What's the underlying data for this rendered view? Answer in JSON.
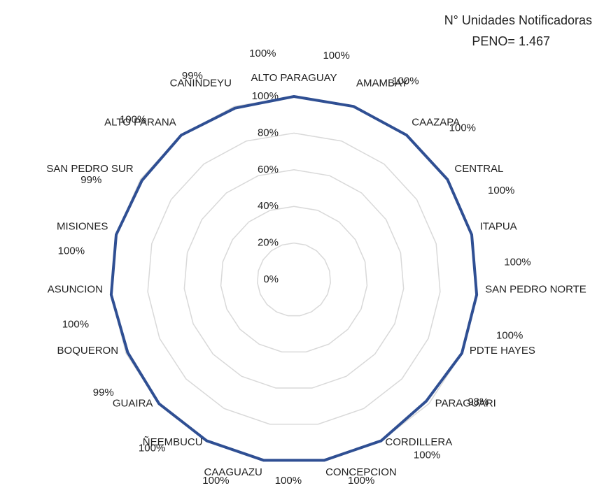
{
  "chart_data": {
    "type": "radar",
    "title": "N° Unidades Notificadoras",
    "subtitle": "PENO= 1.467",
    "categories": [
      "ALTO PARAGUAY",
      "AMAMBAY",
      "CAAZAPA",
      "CENTRAL",
      "ITAPUA",
      "SAN PEDRO NORTE",
      "PDTE HAYES",
      "PARAGUARI",
      "CORDILLERA",
      "CONCEPCION",
      "CAAGUAZU",
      "ÑEEMBUCU",
      "GUAIRA",
      "BOQUERON",
      "ASUNCION",
      "MISIONES",
      "SAN PEDRO SUR",
      "ALTO PARANA",
      "CANINDEYU"
    ],
    "values": [
      100,
      100,
      100,
      100,
      100,
      100,
      100,
      98,
      100,
      100,
      100,
      100,
      100,
      99,
      100,
      100,
      99,
      100,
      99
    ],
    "value_labels": [
      "100%",
      "100%",
      "100%",
      "100%",
      "100%",
      "100%",
      "100%",
      "98%",
      "100%",
      "100%",
      "100%",
      "100%",
      "100%",
      "99%",
      "100%",
      "100%",
      "99%",
      "100%",
      "99%"
    ],
    "color": "#2f4f93",
    "grid_color": "#d9d9d9",
    "rlim": [
      0,
      100
    ],
    "rticks": [
      {
        "value": 0,
        "label": "0%"
      },
      {
        "value": 20,
        "label": "20%"
      },
      {
        "value": 40,
        "label": "40%"
      },
      {
        "value": 60,
        "label": "60%"
      },
      {
        "value": 80,
        "label": "80%"
      },
      {
        "value": 100,
        "label": "100%"
      }
    ],
    "grid": true
  }
}
